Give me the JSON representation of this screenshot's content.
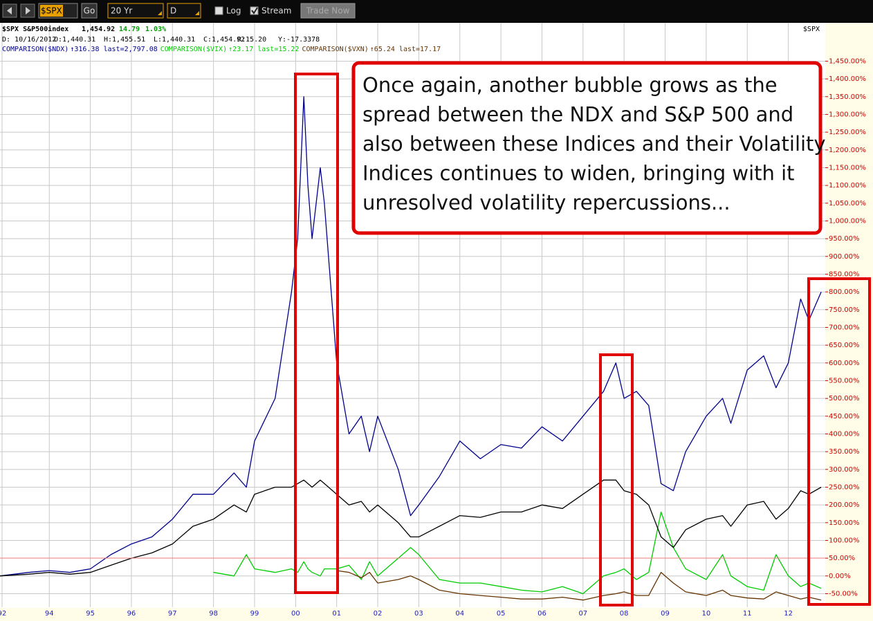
{
  "toolbar": {
    "symbol": "$SPX",
    "go": "Go",
    "period": "20 Yr",
    "interval": "D",
    "log_label": "Log",
    "log_checked": false,
    "stream_label": "Stream",
    "stream_checked": true,
    "trade_button": "Trade Now"
  },
  "chart_data": {
    "type": "line",
    "header": {
      "symbol": "$SPX S&P500index",
      "last": "1,454.92",
      "change": "14.79",
      "change_pct": "1.03%",
      "date": "D: 10/16/2012",
      "open": "O:1,440.31",
      "high": "H:1,455.51",
      "low": "L:1,440.31",
      "close": "C:1,454.92",
      "r": "R:15.20",
      "y": "Y:-17.3378"
    },
    "annotation": [
      "Once again, another bubble grows as the",
      "spread between the NDX and S&P 500 and",
      "also between these Indices and their Volatility",
      "Indices continues to widen, bringing with it",
      "unresolved volatility repercussions..."
    ],
    "x": [
      1992.8,
      1993.5,
      1994.0,
      1994.5,
      1995.0,
      1995.5,
      1996.0,
      1996.5,
      1997.0,
      1997.5,
      1998.0,
      1998.5,
      1998.8,
      1999.0,
      1999.5,
      1999.9,
      2000.05,
      2000.2,
      2000.3,
      2000.4,
      2000.6,
      2000.7,
      2000.9,
      2001.0,
      2001.3,
      2001.6,
      2001.8,
      2002.0,
      2002.5,
      2002.8,
      2003.0,
      2003.5,
      2004.0,
      2004.5,
      2005.0,
      2005.5,
      2006.0,
      2006.5,
      2007.0,
      2007.5,
      2007.8,
      2008.0,
      2008.3,
      2008.6,
      2008.9,
      2009.2,
      2009.5,
      2010.0,
      2010.4,
      2010.6,
      2011.0,
      2011.4,
      2011.7,
      2012.0,
      2012.3,
      2012.5,
      2012.8
    ],
    "series": [
      {
        "name": "COMPARISON($NDX)",
        "details": "↑316.38 last=2,797.08",
        "color": "#00008b",
        "values": [
          0,
          10,
          15,
          10,
          20,
          60,
          90,
          110,
          160,
          230,
          230,
          290,
          250,
          380,
          500,
          800,
          950,
          1350,
          1100,
          950,
          1150,
          1050,
          750,
          600,
          400,
          450,
          350,
          450,
          300,
          170,
          200,
          280,
          380,
          330,
          370,
          360,
          420,
          380,
          450,
          520,
          600,
          500,
          520,
          480,
          260,
          240,
          350,
          450,
          500,
          430,
          580,
          620,
          530,
          600,
          780,
          720,
          800
        ]
      },
      {
        "name": "COMPARISON($VIX)",
        "details": "↑23.17 last=15.22",
        "color": "#00cc00",
        "values": [
          null,
          null,
          null,
          null,
          null,
          null,
          null,
          null,
          null,
          null,
          10,
          0,
          60,
          20,
          10,
          20,
          10,
          40,
          20,
          10,
          0,
          20,
          20,
          20,
          30,
          -10,
          40,
          0,
          50,
          80,
          60,
          -10,
          -20,
          -20,
          -30,
          -40,
          -45,
          -30,
          -50,
          0,
          10,
          20,
          -10,
          10,
          180,
          80,
          20,
          -10,
          60,
          0,
          -30,
          -40,
          60,
          0,
          -30,
          -20,
          -35
        ]
      },
      {
        "name": "COMPARISON($VXN)",
        "details": "↑65.24 last=17.17",
        "color": "#663300",
        "values": [
          null,
          null,
          null,
          null,
          null,
          null,
          null,
          null,
          null,
          null,
          null,
          null,
          null,
          null,
          null,
          null,
          null,
          null,
          null,
          null,
          null,
          null,
          null,
          15,
          10,
          -5,
          10,
          -20,
          -10,
          0,
          -10,
          -40,
          -50,
          -55,
          -60,
          -65,
          -65,
          -60,
          -68,
          -55,
          -50,
          -45,
          -55,
          -55,
          10,
          -20,
          -45,
          -55,
          -40,
          -55,
          -62,
          -65,
          -45,
          -55,
          -65,
          -60,
          -68
        ]
      },
      {
        "name": "$SPX",
        "color": "#000000",
        "values": [
          0,
          5,
          10,
          5,
          10,
          30,
          50,
          65,
          90,
          140,
          160,
          200,
          180,
          230,
          250,
          250,
          260,
          270,
          260,
          250,
          270,
          260,
          240,
          230,
          200,
          210,
          180,
          200,
          150,
          110,
          110,
          140,
          170,
          165,
          180,
          180,
          200,
          190,
          230,
          270,
          270,
          240,
          230,
          200,
          110,
          80,
          130,
          160,
          170,
          140,
          200,
          210,
          160,
          190,
          240,
          230,
          250
        ]
      }
    ],
    "xlim": [
      1992.8,
      2012.9
    ],
    "xticks": [
      {
        "value": 1992.85,
        "label": "92"
      },
      {
        "value": 1994,
        "label": "94"
      },
      {
        "value": 1995,
        "label": "95"
      },
      {
        "value": 1996,
        "label": "96"
      },
      {
        "value": 1997,
        "label": "97"
      },
      {
        "value": 1998,
        "label": "98"
      },
      {
        "value": 1999,
        "label": "99"
      },
      {
        "value": 2000,
        "label": "00"
      },
      {
        "value": 2001,
        "label": "01"
      },
      {
        "value": 2002,
        "label": "02"
      },
      {
        "value": 2003,
        "label": "03"
      },
      {
        "value": 2004,
        "label": "04"
      },
      {
        "value": 2005,
        "label": "05"
      },
      {
        "value": 2006,
        "label": "06"
      },
      {
        "value": 2007,
        "label": "07"
      },
      {
        "value": 2008,
        "label": "08"
      },
      {
        "value": 2009,
        "label": "09"
      },
      {
        "value": 2010,
        "label": "10"
      },
      {
        "value": 2011,
        "label": "11"
      },
      {
        "value": 2012,
        "label": "12"
      }
    ],
    "ylim": [
      -88,
      1558
    ],
    "yticks": [
      {
        "value": -50,
        "label": "-50.00%"
      },
      {
        "value": 0,
        "label": "0.00%"
      },
      {
        "value": 50,
        "label": "50.00%"
      },
      {
        "value": 100,
        "label": "100.00%"
      },
      {
        "value": 150,
        "label": "150.00%"
      },
      {
        "value": 200,
        "label": "200.00%"
      },
      {
        "value": 250,
        "label": "250.00%"
      },
      {
        "value": 300,
        "label": "300.00%"
      },
      {
        "value": 350,
        "label": "350.00%"
      },
      {
        "value": 400,
        "label": "400.00%"
      },
      {
        "value": 450,
        "label": "450.00%"
      },
      {
        "value": 500,
        "label": "500.00%"
      },
      {
        "value": 550,
        "label": "550.00%"
      },
      {
        "value": 600,
        "label": "600.00%"
      },
      {
        "value": 650,
        "label": "650.00%"
      },
      {
        "value": 700,
        "label": "700.00%"
      },
      {
        "value": 750,
        "label": "750.00%"
      },
      {
        "value": 800,
        "label": "800.00%"
      },
      {
        "value": 850,
        "label": "850.00%"
      },
      {
        "value": 900,
        "label": "900.00%"
      },
      {
        "value": 950,
        "label": "950.00%"
      },
      {
        "value": 1000,
        "label": "1,000.00%"
      },
      {
        "value": 1050,
        "label": "1,050.00%"
      },
      {
        "value": 1100,
        "label": "1,100.00%"
      },
      {
        "value": 1150,
        "label": "1,150.00%"
      },
      {
        "value": 1200,
        "label": "1,200.00%"
      },
      {
        "value": 1250,
        "label": "1,250.00%"
      },
      {
        "value": 1300,
        "label": "1,300.00%"
      },
      {
        "value": 1350,
        "label": "1,350.00%"
      },
      {
        "value": 1400,
        "label": "1,400.00%"
      },
      {
        "value": 1450,
        "label": "1,450.00%"
      }
    ],
    "grid": true
  }
}
